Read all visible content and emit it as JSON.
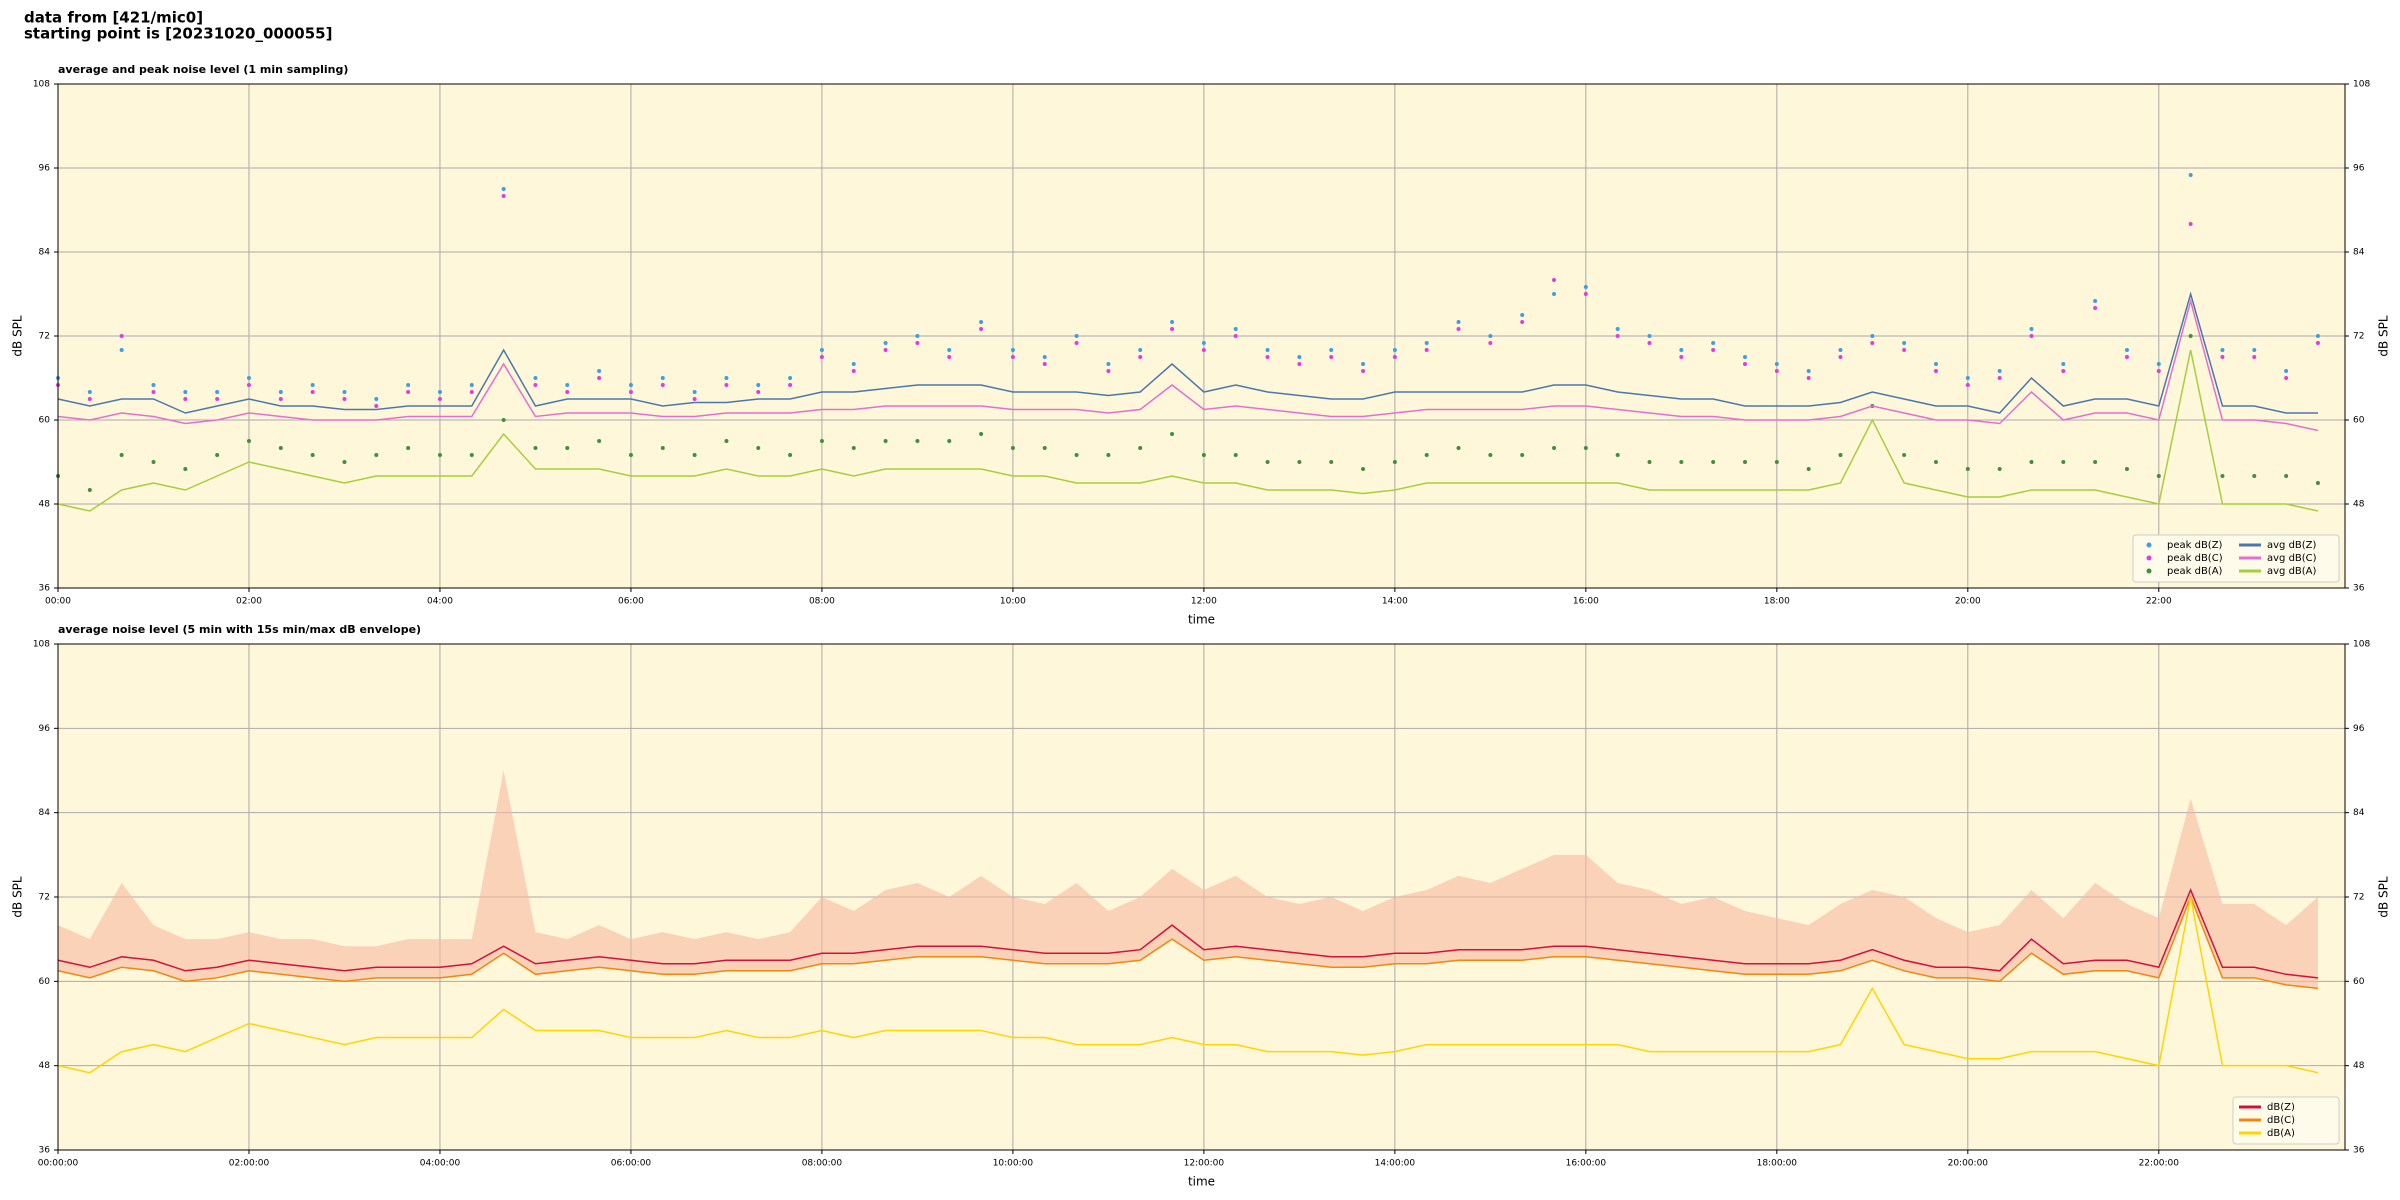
{
  "header": {
    "line1": "data from [421/mic0]",
    "line2": "starting point is [20231020_000055]"
  },
  "chart_data": [
    {
      "type": "line",
      "title": "average and peak noise level (1 min sampling)",
      "xlabel": "time",
      "ylabel": "dB SPL",
      "x": [
        0,
        20,
        40,
        60,
        80,
        100,
        120,
        140,
        160,
        180,
        200,
        220,
        240,
        260,
        280,
        300,
        320,
        340,
        360,
        380,
        400,
        420,
        440,
        460,
        480,
        500,
        520,
        540,
        560,
        580,
        600,
        620,
        640,
        660,
        680,
        700,
        720,
        740,
        760,
        780,
        800,
        820,
        840,
        860,
        880,
        900,
        920,
        940,
        960,
        980,
        1000,
        1020,
        1040,
        1060,
        1080,
        1100,
        1120,
        1140,
        1160,
        1180,
        1200,
        1220,
        1240,
        1260,
        1280,
        1300,
        1320,
        1340,
        1360,
        1380,
        1400,
        1420
      ],
      "xlim": [
        0,
        1437
      ],
      "xticks": [
        {
          "value": 0,
          "label": "00:00"
        },
        {
          "value": 120,
          "label": "02:00"
        },
        {
          "value": 240,
          "label": "04:00"
        },
        {
          "value": 360,
          "label": "06:00"
        },
        {
          "value": 480,
          "label": "08:00"
        },
        {
          "value": 600,
          "label": "10:00"
        },
        {
          "value": 720,
          "label": "12:00"
        },
        {
          "value": 840,
          "label": "14:00"
        },
        {
          "value": 960,
          "label": "16:00"
        },
        {
          "value": 1080,
          "label": "18:00"
        },
        {
          "value": 1200,
          "label": "20:00"
        },
        {
          "value": 1320,
          "label": "22:00"
        }
      ],
      "ylim": [
        36,
        108
      ],
      "yticks": [
        36,
        48,
        60,
        72,
        84,
        96,
        108
      ],
      "grid": true,
      "legend": "lower right",
      "legend_columns": 2,
      "series": [
        {
          "name": "peak dB(Z)",
          "kind": "points",
          "color": "#3d9fe3",
          "values": [
            66,
            64,
            70,
            65,
            64,
            64,
            66,
            64,
            65,
            64,
            63,
            65,
            64,
            65,
            93,
            66,
            65,
            67,
            65,
            66,
            64,
            66,
            65,
            66,
            70,
            68,
            71,
            72,
            70,
            74,
            70,
            69,
            72,
            68,
            70,
            74,
            71,
            73,
            70,
            69,
            70,
            68,
            70,
            71,
            74,
            72,
            75,
            78,
            79,
            73,
            72,
            70,
            71,
            69,
            68,
            67,
            70,
            72,
            71,
            68,
            66,
            67,
            73,
            68,
            77,
            70,
            68,
            95,
            70,
            70,
            67,
            72
          ]
        },
        {
          "name": "peak dB(C)",
          "kind": "points",
          "color": "#e03ce0",
          "values": [
            65,
            63,
            72,
            64,
            63,
            63,
            65,
            63,
            64,
            63,
            62,
            64,
            63,
            64,
            92,
            65,
            64,
            66,
            64,
            65,
            63,
            65,
            64,
            65,
            69,
            67,
            70,
            71,
            69,
            73,
            69,
            68,
            71,
            67,
            69,
            73,
            70,
            72,
            69,
            68,
            69,
            67,
            69,
            70,
            73,
            71,
            74,
            80,
            78,
            72,
            71,
            69,
            70,
            68,
            67,
            66,
            69,
            71,
            70,
            67,
            65,
            66,
            72,
            67,
            76,
            69,
            67,
            88,
            69,
            69,
            66,
            71
          ]
        },
        {
          "name": "peak dB(A)",
          "kind": "points",
          "color": "#3f8f3f",
          "values": [
            52,
            50,
            55,
            54,
            53,
            55,
            57,
            56,
            55,
            54,
            55,
            56,
            55,
            55,
            60,
            56,
            56,
            57,
            55,
            56,
            55,
            57,
            56,
            55,
            57,
            56,
            57,
            57,
            57,
            58,
            56,
            56,
            55,
            55,
            56,
            58,
            55,
            55,
            54,
            54,
            54,
            53,
            54,
            55,
            56,
            55,
            55,
            56,
            56,
            55,
            54,
            54,
            54,
            54,
            54,
            53,
            55,
            62,
            55,
            54,
            53,
            53,
            54,
            54,
            54,
            53,
            52,
            72,
            52,
            52,
            52,
            51
          ]
        },
        {
          "name": "avg dB(Z)",
          "kind": "line",
          "color": "#4a78ad",
          "values": [
            63,
            62,
            63,
            63,
            61,
            62,
            63,
            62,
            62,
            61.5,
            61.5,
            62,
            62,
            62,
            70,
            62,
            63,
            63,
            63,
            62,
            62.5,
            62.5,
            63,
            63,
            64,
            64,
            64.5,
            65,
            65,
            65,
            64,
            64,
            64,
            63.5,
            64,
            68,
            64,
            65,
            64,
            63.5,
            63,
            63,
            64,
            64,
            64,
            64,
            64,
            65,
            65,
            64,
            63.5,
            63,
            63,
            62,
            62,
            62,
            62.5,
            64,
            63,
            62,
            62,
            61,
            66,
            62,
            63,
            63,
            62,
            78,
            62,
            62,
            61,
            61
          ]
        },
        {
          "name": "avg dB(C)",
          "kind": "line",
          "color": "#e36fd2",
          "values": [
            60.5,
            60,
            61,
            60.5,
            59.5,
            60,
            61,
            60.5,
            60,
            60,
            60,
            60.5,
            60.5,
            60.5,
            68,
            60.5,
            61,
            61,
            61,
            60.5,
            60.5,
            61,
            61,
            61,
            61.5,
            61.5,
            62,
            62,
            62,
            62,
            61.5,
            61.5,
            61.5,
            61,
            61.5,
            65,
            61.5,
            62,
            61.5,
            61,
            60.5,
            60.5,
            61,
            61.5,
            61.5,
            61.5,
            61.5,
            62,
            62,
            61.5,
            61,
            60.5,
            60.5,
            60,
            60,
            60,
            60.5,
            62,
            61,
            60,
            60,
            59.5,
            64,
            60,
            61,
            61,
            60,
            77,
            60,
            60,
            59.5,
            58.5
          ]
        },
        {
          "name": "avg dB(A)",
          "kind": "line",
          "color": "#a5cf3c",
          "values": [
            48,
            47,
            50,
            51,
            50,
            52,
            54,
            53,
            52,
            51,
            52,
            52,
            52,
            52,
            58,
            53,
            53,
            53,
            52,
            52,
            52,
            53,
            52,
            52,
            53,
            52,
            53,
            53,
            53,
            53,
            52,
            52,
            51,
            51,
            51,
            52,
            51,
            51,
            50,
            50,
            50,
            49.5,
            50,
            51,
            51,
            51,
            51,
            51,
            51,
            51,
            50,
            50,
            50,
            50,
            50,
            50,
            51,
            60,
            51,
            50,
            49,
            49,
            50,
            50,
            50,
            49,
            48,
            70,
            48,
            48,
            48,
            47
          ]
        }
      ]
    },
    {
      "type": "line",
      "title": "average noise level (5 min with 15s min/max dB envelope)",
      "xlabel": "time",
      "ylabel": "dB SPL",
      "x": [
        0,
        20,
        40,
        60,
        80,
        100,
        120,
        140,
        160,
        180,
        200,
        220,
        240,
        260,
        280,
        300,
        320,
        340,
        360,
        380,
        400,
        420,
        440,
        460,
        480,
        500,
        520,
        540,
        560,
        580,
        600,
        620,
        640,
        660,
        680,
        700,
        720,
        740,
        760,
        780,
        800,
        820,
        840,
        860,
        880,
        900,
        920,
        940,
        960,
        980,
        1000,
        1020,
        1040,
        1060,
        1080,
        1100,
        1120,
        1140,
        1160,
        1180,
        1200,
        1220,
        1240,
        1260,
        1280,
        1300,
        1320,
        1340,
        1360,
        1380,
        1400,
        1420
      ],
      "xlim": [
        0,
        1437
      ],
      "xticks": [
        {
          "value": 0,
          "label": "00:00:00"
        },
        {
          "value": 120,
          "label": "02:00:00"
        },
        {
          "value": 240,
          "label": "04:00:00"
        },
        {
          "value": 360,
          "label": "06:00:00"
        },
        {
          "value": 480,
          "label": "08:00:00"
        },
        {
          "value": 600,
          "label": "10:00:00"
        },
        {
          "value": 720,
          "label": "12:00:00"
        },
        {
          "value": 840,
          "label": "14:00:00"
        },
        {
          "value": 960,
          "label": "16:00:00"
        },
        {
          "value": 1080,
          "label": "18:00:00"
        },
        {
          "value": 1200,
          "label": "20:00:00"
        },
        {
          "value": 1320,
          "label": "22:00:00"
        }
      ],
      "ylim": [
        36,
        108
      ],
      "yticks": [
        36,
        48,
        60,
        72,
        84,
        96,
        108
      ],
      "grid": true,
      "legend": "lower right",
      "legend_columns": 1,
      "envelope": {
        "color": "#f5b9a2",
        "high": [
          68,
          66,
          74,
          68,
          66,
          66,
          67,
          66,
          66,
          65,
          65,
          66,
          66,
          66,
          90,
          67,
          66,
          68,
          66,
          67,
          66,
          67,
          66,
          67,
          72,
          70,
          73,
          74,
          72,
          75,
          72,
          71,
          74,
          70,
          72,
          76,
          73,
          75,
          72,
          71,
          72,
          70,
          72,
          73,
          75,
          74,
          76,
          78,
          78,
          74,
          73,
          71,
          72,
          70,
          69,
          68,
          71,
          73,
          72,
          69,
          67,
          68,
          73,
          69,
          74,
          71,
          69,
          86,
          71,
          71,
          68,
          72
        ]
      },
      "series": [
        {
          "name": "dB(Z)",
          "kind": "line",
          "color": "#d3113b",
          "values": [
            63,
            62,
            63.5,
            63,
            61.5,
            62,
            63,
            62.5,
            62,
            61.5,
            62,
            62,
            62,
            62.5,
            65,
            62.5,
            63,
            63.5,
            63,
            62.5,
            62.5,
            63,
            63,
            63,
            64,
            64,
            64.5,
            65,
            65,
            65,
            64.5,
            64,
            64,
            64,
            64.5,
            68,
            64.5,
            65,
            64.5,
            64,
            63.5,
            63.5,
            64,
            64,
            64.5,
            64.5,
            64.5,
            65,
            65,
            64.5,
            64,
            63.5,
            63,
            62.5,
            62.5,
            62.5,
            63,
            64.5,
            63,
            62,
            62,
            61.5,
            66,
            62.5,
            63,
            63,
            62,
            73,
            62,
            62,
            61,
            60.5
          ]
        },
        {
          "name": "dB(C)",
          "kind": "line",
          "color": "#f0870f",
          "values": [
            61.5,
            60.5,
            62,
            61.5,
            60,
            60.5,
            61.5,
            61,
            60.5,
            60,
            60.5,
            60.5,
            60.5,
            61,
            64,
            61,
            61.5,
            62,
            61.5,
            61,
            61,
            61.5,
            61.5,
            61.5,
            62.5,
            62.5,
            63,
            63.5,
            63.5,
            63.5,
            63,
            62.5,
            62.5,
            62.5,
            63,
            66,
            63,
            63.5,
            63,
            62.5,
            62,
            62,
            62.5,
            62.5,
            63,
            63,
            63,
            63.5,
            63.5,
            63,
            62.5,
            62,
            61.5,
            61,
            61,
            61,
            61.5,
            63,
            61.5,
            60.5,
            60.5,
            60,
            64,
            61,
            61.5,
            61.5,
            60.5,
            72,
            60.5,
            60.5,
            59.5,
            59
          ]
        },
        {
          "name": "dB(A)",
          "kind": "line",
          "color": "#ffd500",
          "values": [
            48,
            47,
            50,
            51,
            50,
            52,
            54,
            53,
            52,
            51,
            52,
            52,
            52,
            52,
            56,
            53,
            53,
            53,
            52,
            52,
            52,
            53,
            52,
            52,
            53,
            52,
            53,
            53,
            53,
            53,
            52,
            52,
            51,
            51,
            51,
            52,
            51,
            51,
            50,
            50,
            50,
            49.5,
            50,
            51,
            51,
            51,
            51,
            51,
            51,
            51,
            50,
            50,
            50,
            50,
            50,
            50,
            51,
            59,
            51,
            50,
            49,
            49,
            50,
            50,
            50,
            49,
            48,
            72,
            48,
            48,
            48,
            47
          ]
        }
      ]
    }
  ]
}
